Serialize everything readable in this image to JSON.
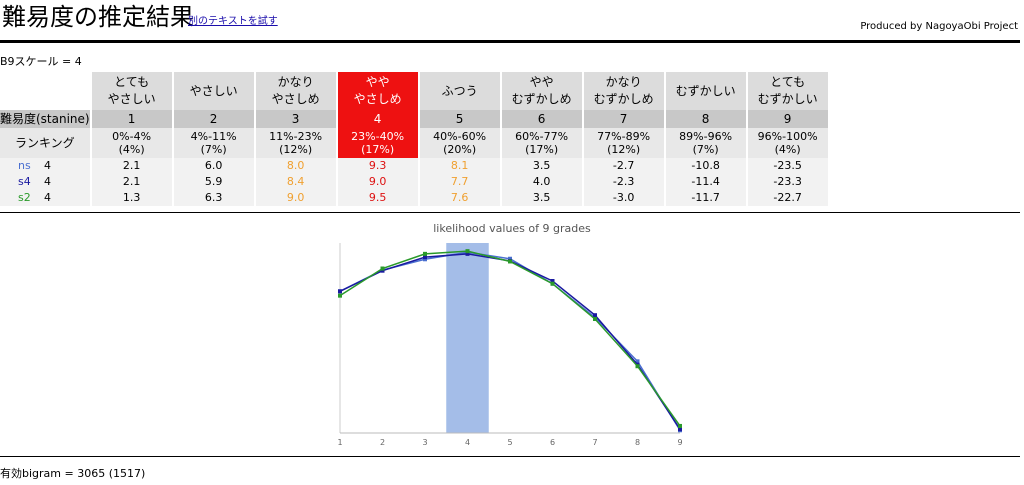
{
  "header": {
    "title": "難易度の推定結果",
    "link_text": "別のテキストを試す",
    "credit": "Produced by NagoyaObi Project"
  },
  "scale_text": "B9スケール = 4",
  "table": {
    "difficulty_label": "難易度(stanine)",
    "ranking_label": "ランキング",
    "selected_grade": 4,
    "grades": [
      {
        "line1": "とても",
        "line2": "やさしい",
        "num": "1",
        "range": "0%-4%",
        "pct": "(4%)"
      },
      {
        "line1": "",
        "line2": "やさしい",
        "num": "2",
        "range": "4%-11%",
        "pct": "(7%)"
      },
      {
        "line1": "かなり",
        "line2": "やさしめ",
        "num": "3",
        "range": "11%-23%",
        "pct": "(12%)"
      },
      {
        "line1": "やや",
        "line2": "やさしめ",
        "num": "4",
        "range": "23%-40%",
        "pct": "(17%)"
      },
      {
        "line1": "",
        "line2": "ふつう",
        "num": "5",
        "range": "40%-60%",
        "pct": "(20%)"
      },
      {
        "line1": "やや",
        "line2": "むずかしめ",
        "num": "6",
        "range": "60%-77%",
        "pct": "(17%)"
      },
      {
        "line1": "かなり",
        "line2": "むずかしめ",
        "num": "7",
        "range": "77%-89%",
        "pct": "(12%)"
      },
      {
        "line1": "",
        "line2": "むずかしい",
        "num": "8",
        "range": "89%-96%",
        "pct": "(7%)"
      },
      {
        "line1": "とても",
        "line2": "むずかしい",
        "num": "9",
        "range": "96%-100%",
        "pct": "(4%)"
      }
    ],
    "models": [
      {
        "name": "ns",
        "grade": "4",
        "color": "#4a6fd0",
        "values": [
          "2.1",
          "6.0",
          "8.0",
          "9.3",
          "8.1",
          "3.5",
          "-2.7",
          "-10.8",
          "-23.5"
        ]
      },
      {
        "name": "s4",
        "grade": "4",
        "color": "#1a1aa0",
        "values": [
          "2.1",
          "5.9",
          "8.4",
          "9.0",
          "7.7",
          "4.0",
          "-2.3",
          "-11.4",
          "-23.3"
        ]
      },
      {
        "name": "s2",
        "grade": "4",
        "color": "#2a9a2a",
        "values": [
          "1.3",
          "6.3",
          "9.0",
          "9.5",
          "7.6",
          "3.5",
          "-3.0",
          "-11.7",
          "-22.7"
        ]
      }
    ]
  },
  "chart_data": {
    "type": "line",
    "title": "likelihood values of 9 grades",
    "x": [
      1,
      2,
      3,
      4,
      5,
      6,
      7,
      8,
      9
    ],
    "highlight_x": 4,
    "highlight_color": "#a4bde8",
    "series": [
      {
        "name": "ns",
        "color": "#4a6fd0",
        "values": [
          2.1,
          6.0,
          8.0,
          9.3,
          8.1,
          3.5,
          -2.7,
          -10.8,
          -23.5
        ]
      },
      {
        "name": "s4",
        "color": "#1a1aa0",
        "values": [
          2.1,
          5.9,
          8.4,
          9.0,
          7.7,
          4.0,
          -2.3,
          -11.4,
          -23.3
        ]
      },
      {
        "name": "s2",
        "color": "#2a9a2a",
        "values": [
          1.3,
          6.3,
          9.0,
          9.5,
          7.6,
          3.5,
          -3.0,
          -11.7,
          -22.7
        ]
      }
    ],
    "ylim": [
      -24,
      11
    ],
    "grid": false,
    "legend": "none"
  },
  "footer_text": "有効bigram = 3065 (1517)"
}
